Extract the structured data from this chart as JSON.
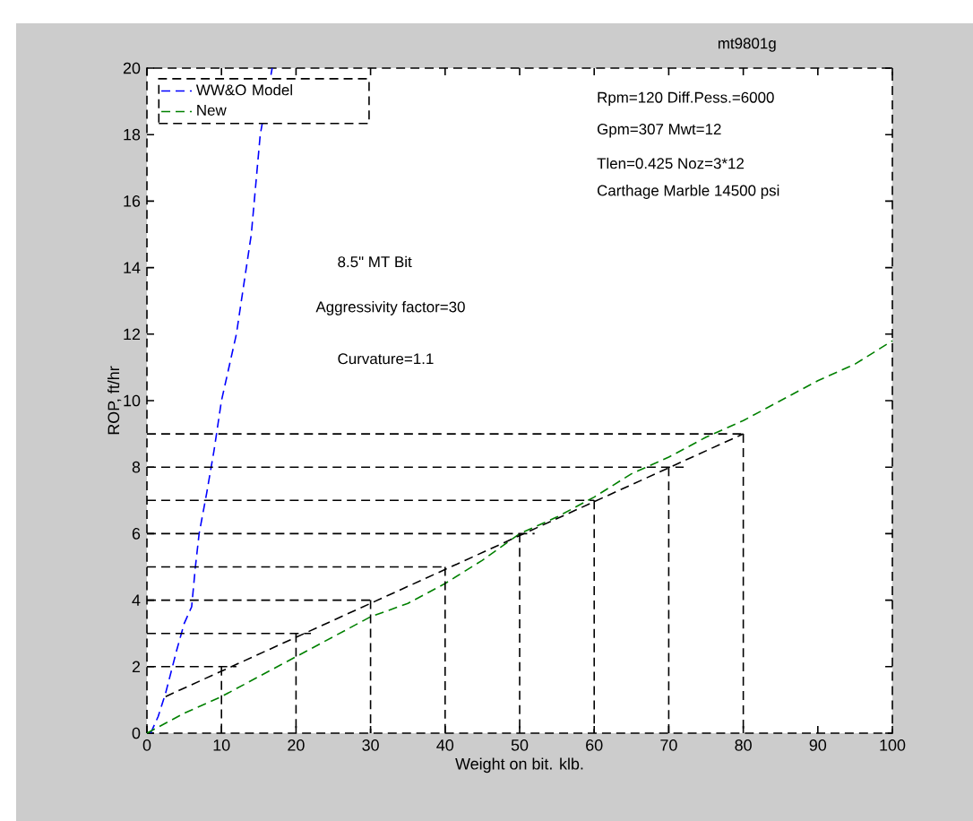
{
  "chart_data": {
    "type": "line",
    "xlabel": "Weight on bit. klb.",
    "ylabel": "ROP, ft/hr",
    "xlim": [
      0,
      100
    ],
    "ylim": [
      0,
      20
    ],
    "xticks": [
      0,
      10,
      20,
      30,
      40,
      50,
      60,
      70,
      80,
      90,
      100
    ],
    "yticks": [
      0,
      2,
      4,
      6,
      8,
      10,
      12,
      14,
      16,
      18,
      20
    ],
    "grid": false,
    "legend": "top left",
    "line_style": "dashed",
    "annotations": [
      "mt9801g",
      "Rpm=120 Diff.Pess.=6000",
      "Gpm=307  Mwt=12",
      "Tlen=0.425  Noz=3*12",
      "Carthage Marble 14500 psi",
      "8.5\" MT Bit",
      "Aggressivity factor=30",
      "Curvature=1.1"
    ],
    "series": [
      {
        "name": "WW&O Model",
        "color": "#0000ff",
        "x": [
          0.5,
          1.5,
          2.5,
          4,
          5,
          6,
          6.5,
          7,
          8,
          9,
          10,
          12,
          14,
          15.2,
          16.8
        ],
        "values": [
          0,
          0.5,
          1.2,
          2.5,
          3.3,
          3.8,
          5,
          6,
          7.2,
          8.5,
          10,
          12,
          15,
          18,
          20
        ]
      },
      {
        "name": "New",
        "color": "#008000",
        "x": [
          0,
          5,
          10,
          15,
          20,
          25,
          30,
          35,
          40,
          45,
          50,
          55,
          60,
          65,
          70,
          75,
          80,
          85,
          90,
          95,
          100
        ],
        "values": [
          0,
          0.6,
          1.1,
          1.7,
          2.3,
          2.9,
          3.5,
          3.9,
          4.5,
          5.2,
          6,
          6.5,
          7.1,
          7.8,
          8.3,
          8.9,
          9.4,
          10,
          10.6,
          11.1,
          11.8
        ]
      },
      {
        "color": "#000000",
        "x": [
          2.5,
          80
        ],
        "values": [
          1.1,
          9
        ]
      },
      {
        "color": "#000000",
        "x": [
          0,
          12
        ],
        "values": [
          2,
          2
        ]
      },
      {
        "color": "#000000",
        "x": [
          10,
          10
        ],
        "values": [
          2,
          0
        ]
      },
      {
        "color": "#000000",
        "x": [
          0,
          22
        ],
        "values": [
          3,
          3
        ]
      },
      {
        "color": "#000000",
        "x": [
          20,
          20
        ],
        "values": [
          3,
          0
        ]
      },
      {
        "color": "#000000",
        "x": [
          0,
          30
        ],
        "values": [
          4,
          4
        ]
      },
      {
        "color": "#000000",
        "x": [
          30,
          30
        ],
        "values": [
          4,
          0
        ]
      },
      {
        "color": "#000000",
        "x": [
          0,
          40
        ],
        "values": [
          5,
          5
        ]
      },
      {
        "color": "#000000",
        "x": [
          40,
          40
        ],
        "values": [
          5,
          0
        ]
      },
      {
        "color": "#000000",
        "x": [
          0,
          52
        ],
        "values": [
          6,
          6
        ]
      },
      {
        "color": "#000000",
        "x": [
          50,
          50
        ],
        "values": [
          6,
          0
        ]
      },
      {
        "color": "#000000",
        "x": [
          0,
          60
        ],
        "values": [
          7,
          7
        ]
      },
      {
        "color": "#000000",
        "x": [
          60,
          60
        ],
        "values": [
          7,
          0
        ]
      },
      {
        "color": "#000000",
        "x": [
          0,
          72
        ],
        "values": [
          8,
          8
        ]
      },
      {
        "color": "#000000",
        "x": [
          70,
          70
        ],
        "values": [
          8,
          0
        ]
      },
      {
        "color": "#000000",
        "x": [
          0,
          80
        ],
        "values": [
          9,
          9
        ]
      },
      {
        "color": "#000000",
        "x": [
          80,
          80
        ],
        "values": [
          9,
          0
        ]
      }
    ]
  }
}
